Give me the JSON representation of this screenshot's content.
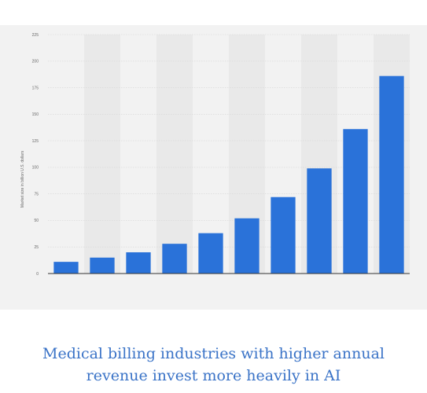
{
  "caption": {
    "line1": "Medical billing industries with higher annual",
    "line2": "revenue invest more heavily in AI"
  },
  "chart_data": {
    "type": "bar",
    "ylabel": "Market size in billion U.S. dollars",
    "ylim": [
      0,
      225
    ],
    "yticks": [
      "0",
      "25",
      "50",
      "75",
      "100",
      "125",
      "150",
      "175",
      "200",
      "225"
    ],
    "categories": [
      "",
      "",
      "",
      "",
      "",
      "",
      "",
      "",
      "",
      ""
    ],
    "values": [
      11,
      15,
      20,
      28,
      38,
      52,
      72,
      99,
      136,
      186
    ],
    "grid": true,
    "bar_color": "#2a72d9",
    "band_color": "#e9e9e9",
    "panel_color": "#f2f2f2"
  }
}
